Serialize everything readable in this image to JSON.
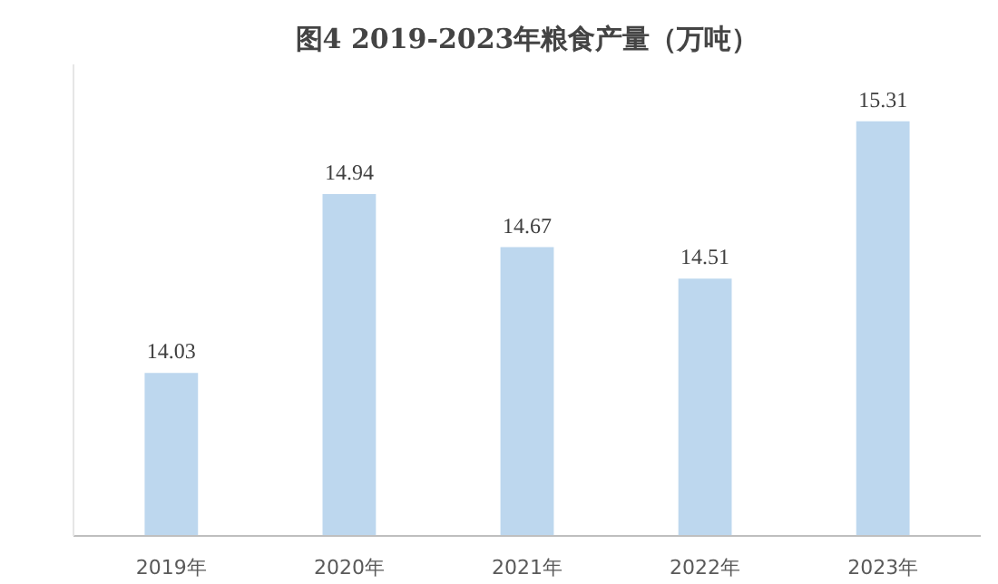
{
  "chart_data": {
    "type": "bar",
    "title": "图4 2019-2023年粮食产量（万吨）",
    "categories": [
      "2019年",
      "2020年",
      "2021年",
      "2022年",
      "2023年"
    ],
    "values": [
      14.03,
      14.94,
      14.67,
      14.51,
      15.31
    ],
    "color": "#bdd7ee",
    "ylim": [
      13.2,
      15.6
    ],
    "data_labels": true,
    "grid": false
  }
}
